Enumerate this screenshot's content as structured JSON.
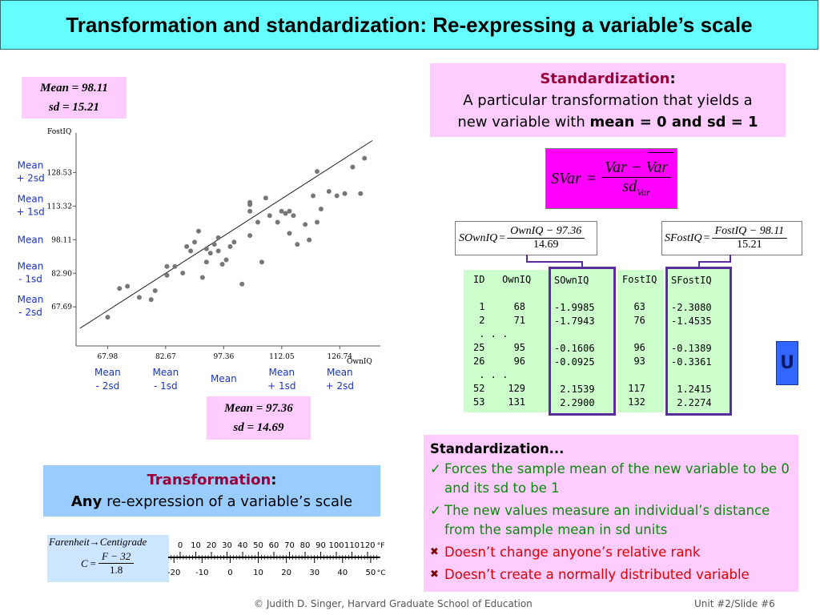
{
  "slide": {
    "title": "Transformation and standardization: Re-expressing a variable’s scale",
    "footer": "© Judith D. Singer, Harvard Graduate School of Education",
    "slide_number": "Unit #2/Slide #6"
  },
  "fost_stats": {
    "mean": "Mean = 98.11",
    "sd": "sd = 15.21"
  },
  "own_stats": {
    "mean": "Mean = 97.36",
    "sd": "sd = 14.69"
  },
  "chart_data": {
    "type": "scatter",
    "xlabel": "OwnIQ",
    "ylabel": "FostIQ",
    "xlim": [
      60,
      136
    ],
    "ylim": [
      50,
      145
    ],
    "x_ticks": [
      67.98,
      82.67,
      97.36,
      112.05,
      126.74
    ],
    "x_tick_labels": [
      "67.98",
      "82.67",
      "97.36",
      "112.05",
      "126.74"
    ],
    "y_ticks": [
      67.69,
      82.9,
      98.11,
      113.32,
      128.53
    ],
    "y_tick_labels": [
      "67.69",
      "82.90",
      "98.11",
      "113.32",
      "128.53"
    ],
    "y_band_labels": [
      "Mean + 2sd",
      "Mean + 1sd",
      "Mean",
      "Mean - 1sd",
      "Mean - 2sd"
    ],
    "x_band_labels": [
      "Mean - 2sd",
      "Mean - 1sd",
      "Mean",
      "Mean + 1sd",
      "Mean + 2sd"
    ],
    "regression_line": {
      "x": [
        61,
        135
      ],
      "y": [
        58,
        143
      ]
    },
    "points": [
      {
        "x": 68,
        "y": 63
      },
      {
        "x": 71,
        "y": 76
      },
      {
        "x": 73,
        "y": 77
      },
      {
        "x": 76,
        "y": 72
      },
      {
        "x": 79,
        "y": 71
      },
      {
        "x": 80,
        "y": 75
      },
      {
        "x": 83,
        "y": 86
      },
      {
        "x": 83,
        "y": 82
      },
      {
        "x": 85,
        "y": 86
      },
      {
        "x": 87,
        "y": 83
      },
      {
        "x": 88,
        "y": 95
      },
      {
        "x": 89,
        "y": 93
      },
      {
        "x": 90,
        "y": 97
      },
      {
        "x": 91,
        "y": 102
      },
      {
        "x": 92,
        "y": 81
      },
      {
        "x": 93,
        "y": 88
      },
      {
        "x": 93,
        "y": 94
      },
      {
        "x": 94,
        "y": 92
      },
      {
        "x": 95,
        "y": 96
      },
      {
        "x": 96,
        "y": 99
      },
      {
        "x": 96,
        "y": 93
      },
      {
        "x": 97,
        "y": 87
      },
      {
        "x": 98,
        "y": 89
      },
      {
        "x": 99,
        "y": 95
      },
      {
        "x": 100,
        "y": 97
      },
      {
        "x": 102,
        "y": 78
      },
      {
        "x": 104,
        "y": 100
      },
      {
        "x": 104,
        "y": 111
      },
      {
        "x": 104,
        "y": 114
      },
      {
        "x": 104,
        "y": 115
      },
      {
        "x": 106,
        "y": 106
      },
      {
        "x": 107,
        "y": 88
      },
      {
        "x": 108,
        "y": 117
      },
      {
        "x": 109,
        "y": 109
      },
      {
        "x": 111,
        "y": 106
      },
      {
        "x": 112,
        "y": 111
      },
      {
        "x": 113,
        "y": 110
      },
      {
        "x": 114,
        "y": 111
      },
      {
        "x": 114,
        "y": 101
      },
      {
        "x": 115,
        "y": 109
      },
      {
        "x": 116,
        "y": 96
      },
      {
        "x": 118,
        "y": 105
      },
      {
        "x": 119,
        "y": 98
      },
      {
        "x": 120,
        "y": 118
      },
      {
        "x": 121,
        "y": 106
      },
      {
        "x": 121,
        "y": 129
      },
      {
        "x": 122,
        "y": 112
      },
      {
        "x": 124,
        "y": 120
      },
      {
        "x": 126,
        "y": 118
      },
      {
        "x": 128,
        "y": 119
      },
      {
        "x": 130,
        "y": 131
      },
      {
        "x": 132,
        "y": 119
      },
      {
        "x": 133,
        "y": 135
      }
    ]
  },
  "standardization_box": {
    "heading": "Standardization",
    "colon": ":",
    "line1": "A particular transformation that yields a",
    "line2_start": "new variable with ",
    "line2_bold": "mean = 0 and sd  = 1"
  },
  "svar_formula": {
    "lhs": "SVar",
    "eq": "=",
    "num": "Var − Var",
    "den_main": "sd",
    "den_sub": "Var"
  },
  "sownq_formula": {
    "lhs": "SOwnIQ",
    "eq": "=",
    "num": "OwnIQ − 97.36",
    "den": "14.69"
  },
  "sfost_formula": {
    "lhs": "SFostIQ",
    "eq": "=",
    "num": "FostIQ − 98.11",
    "den": "15.21"
  },
  "table": {
    "col1": "ID   OwnIQ\n\n 1     68\n 2     71\n . . .\n25     95\n26     96\n . . .\n52    129\n53    131",
    "col2": "SOwnIQ\n\n-1.9985\n-1.7943\n\n-0.1606\n-0.0925\n\n 2.1539\n 2.2900",
    "col3": "FostIQ\n\n  63\n  76\n\n  96\n  93\n\n 117\n 132",
    "col4": "SFostIQ\n\n-2.3080\n-1.4535\n\n-0.1389\n-0.3361\n\n 1.2415\n 2.2274"
  },
  "bullets": {
    "heading": "Standardization...",
    "check_mark": "✓",
    "x_mark": "✖",
    "items": [
      "Forces the sample mean of the new variable to be 0 and its sd to be 1",
      "The new values measure an individual’s distance from the sample mean in sd units",
      "Doesn’t change anyone’s relative rank",
      "Doesn’t create a normally distributed variable"
    ]
  },
  "transformation_box": {
    "heading": "Transformation",
    "colon": ":",
    "line_bold": "Any",
    "line_rest": " re-expression of a variable’s scale"
  },
  "temp_formula": {
    "title_left": "Farenheit",
    "arrow": "→",
    "title_right": "Centigrade",
    "lhs": "C",
    "eq": "=",
    "num": "F − 32",
    "den": "1.8"
  },
  "thermometer": {
    "f_values": [
      0,
      10,
      20,
      30,
      40,
      50,
      60,
      70,
      80,
      90,
      100,
      110,
      120
    ],
    "f_labels": [
      "0",
      "10",
      "20",
      "30",
      "40",
      "50",
      "60",
      "70",
      "80",
      "90",
      "100",
      "110",
      "120"
    ],
    "f_unit": "°F",
    "c_values": [
      -20,
      -10,
      0,
      10,
      20,
      30,
      40,
      50
    ],
    "c_labels": [
      "-20",
      "-10",
      "0",
      "10",
      "20",
      "30",
      "40",
      "50"
    ],
    "c_unit": "°C"
  },
  "side_button": {
    "glyph": "U"
  }
}
